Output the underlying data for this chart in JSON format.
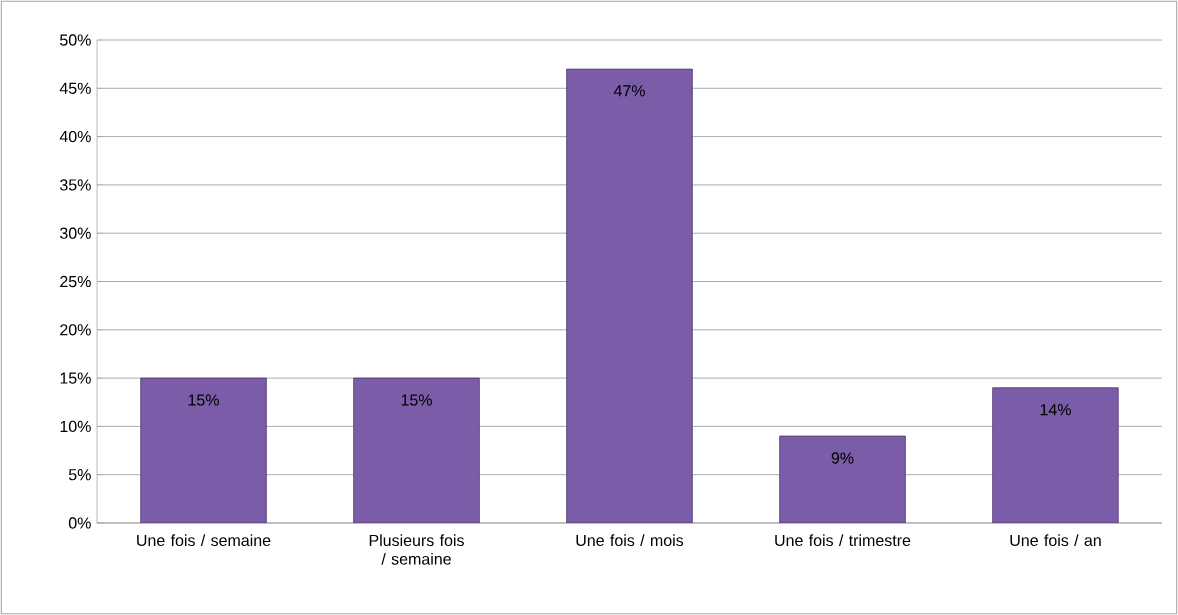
{
  "chart_data": {
    "type": "bar",
    "categories": [
      "Une fois / semaine",
      "Plusieurs fois / semaine",
      "Une fois / mois",
      "Une fois / trimestre",
      "Une fois / an"
    ],
    "values": [
      15,
      15,
      47,
      9,
      14
    ],
    "value_labels": [
      "15%",
      "15%",
      "47%",
      "9%",
      "14%"
    ],
    "color": "#7b5ca8",
    "ylim": [
      0,
      50
    ],
    "yticks": [
      {
        "value": 0,
        "label": "0%"
      },
      {
        "value": 5,
        "label": "5%"
      },
      {
        "value": 10,
        "label": "10%"
      },
      {
        "value": 15,
        "label": "15%"
      },
      {
        "value": 20,
        "label": "20%"
      },
      {
        "value": 25,
        "label": "25%"
      },
      {
        "value": 30,
        "label": "30%"
      },
      {
        "value": 35,
        "label": "35%"
      },
      {
        "value": 40,
        "label": "40%"
      },
      {
        "value": 45,
        "label": "45%"
      },
      {
        "value": 50,
        "label": "50%"
      }
    ],
    "grid": "y"
  }
}
